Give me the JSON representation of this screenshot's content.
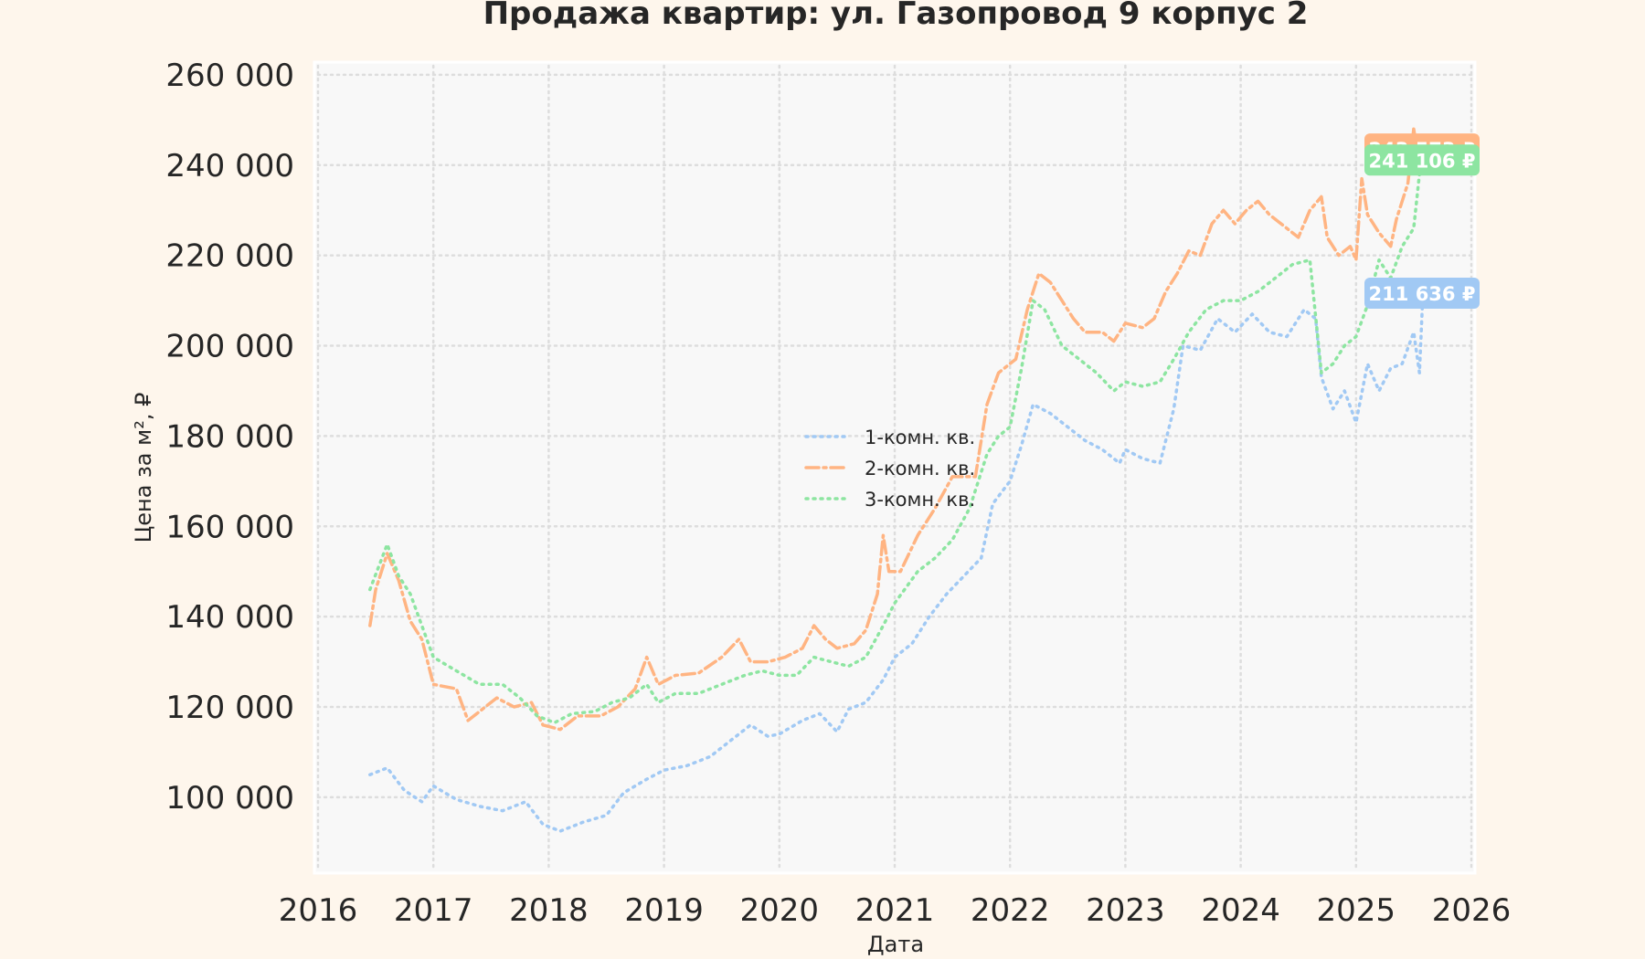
{
  "chart_data": {
    "type": "line",
    "title": "Продажа квартир: ул. Газопровод 9 корпус 2",
    "xlabel": "Дата",
    "ylabel": "Цена за м², ₽",
    "xlim": [
      2016.0,
      2026.0
    ],
    "ylim": [
      84000,
      262000
    ],
    "x_ticks": [
      "2016",
      "2017",
      "2018",
      "2019",
      "2020",
      "2021",
      "2022",
      "2023",
      "2024",
      "2025",
      "2026"
    ],
    "y_ticks": [
      {
        "value": 100000,
        "label": "100 000"
      },
      {
        "value": 120000,
        "label": "120 000"
      },
      {
        "value": 140000,
        "label": "140 000"
      },
      {
        "value": 160000,
        "label": "160 000"
      },
      {
        "value": 180000,
        "label": "180 000"
      },
      {
        "value": 200000,
        "label": "200 000"
      },
      {
        "value": 220000,
        "label": "220 000"
      },
      {
        "value": 240000,
        "label": "240 000"
      },
      {
        "value": 260000,
        "label": "260 000"
      }
    ],
    "grid": true,
    "legend_position": "center",
    "series": [
      {
        "name": "1-комн. кв.",
        "color": "#a1c9f4",
        "style": "dotted",
        "end_label": "211 636 ₽",
        "end_value": 211636,
        "points": [
          [
            2016.45,
            105000
          ],
          [
            2016.6,
            106500
          ],
          [
            2016.75,
            101500
          ],
          [
            2016.9,
            99000
          ],
          [
            2017.0,
            102500
          ],
          [
            2017.2,
            99500
          ],
          [
            2017.4,
            98000
          ],
          [
            2017.6,
            97000
          ],
          [
            2017.8,
            99000
          ],
          [
            2017.95,
            94000
          ],
          [
            2018.1,
            92500
          ],
          [
            2018.3,
            94500
          ],
          [
            2018.5,
            96000
          ],
          [
            2018.65,
            101000
          ],
          [
            2018.85,
            104000
          ],
          [
            2019.0,
            106000
          ],
          [
            2019.2,
            107000
          ],
          [
            2019.4,
            109000
          ],
          [
            2019.6,
            113000
          ],
          [
            2019.75,
            116000
          ],
          [
            2019.9,
            113500
          ],
          [
            2020.0,
            114000
          ],
          [
            2020.2,
            117000
          ],
          [
            2020.35,
            118500
          ],
          [
            2020.5,
            114500
          ],
          [
            2020.6,
            119500
          ],
          [
            2020.75,
            121000
          ],
          [
            2020.9,
            126000
          ],
          [
            2021.0,
            131000
          ],
          [
            2021.15,
            134000
          ],
          [
            2021.3,
            140000
          ],
          [
            2021.45,
            145000
          ],
          [
            2021.6,
            149000
          ],
          [
            2021.75,
            153000
          ],
          [
            2021.85,
            165000
          ],
          [
            2022.0,
            170000
          ],
          [
            2022.1,
            178000
          ],
          [
            2022.2,
            187000
          ],
          [
            2022.35,
            185000
          ],
          [
            2022.5,
            182000
          ],
          [
            2022.65,
            179000
          ],
          [
            2022.8,
            177000
          ],
          [
            2022.95,
            174000
          ],
          [
            2023.0,
            177000
          ],
          [
            2023.15,
            175000
          ],
          [
            2023.3,
            174000
          ],
          [
            2023.42,
            186000
          ],
          [
            2023.5,
            200000
          ],
          [
            2023.65,
            199000
          ],
          [
            2023.8,
            206000
          ],
          [
            2023.95,
            203000
          ],
          [
            2024.1,
            207000
          ],
          [
            2024.25,
            203000
          ],
          [
            2024.4,
            202000
          ],
          [
            2024.55,
            208000
          ],
          [
            2024.65,
            206000
          ],
          [
            2024.7,
            193000
          ],
          [
            2024.8,
            186000
          ],
          [
            2024.9,
            190000
          ],
          [
            2025.0,
            183000
          ],
          [
            2025.1,
            196000
          ],
          [
            2025.2,
            190000
          ],
          [
            2025.3,
            195000
          ],
          [
            2025.4,
            196000
          ],
          [
            2025.5,
            203000
          ],
          [
            2025.55,
            194000
          ],
          [
            2025.58,
            211636
          ]
        ]
      },
      {
        "name": "2-комн. кв.",
        "color": "#ffb482",
        "style": "dashdot",
        "end_label": "243 573 ₽",
        "end_value": 243573,
        "points": [
          [
            2016.45,
            138000
          ],
          [
            2016.5,
            146000
          ],
          [
            2016.6,
            154000
          ],
          [
            2016.7,
            148000
          ],
          [
            2016.8,
            139000
          ],
          [
            2016.9,
            135000
          ],
          [
            2017.0,
            125000
          ],
          [
            2017.2,
            124000
          ],
          [
            2017.3,
            117000
          ],
          [
            2017.4,
            119000
          ],
          [
            2017.55,
            122000
          ],
          [
            2017.7,
            120000
          ],
          [
            2017.85,
            121000
          ],
          [
            2017.95,
            116000
          ],
          [
            2018.1,
            115000
          ],
          [
            2018.25,
            118000
          ],
          [
            2018.45,
            118000
          ],
          [
            2018.6,
            120000
          ],
          [
            2018.75,
            124000
          ],
          [
            2018.85,
            131000
          ],
          [
            2018.95,
            125000
          ],
          [
            2019.1,
            127000
          ],
          [
            2019.3,
            127500
          ],
          [
            2019.5,
            131000
          ],
          [
            2019.65,
            135000
          ],
          [
            2019.75,
            130000
          ],
          [
            2019.9,
            130000
          ],
          [
            2020.05,
            131000
          ],
          [
            2020.2,
            133000
          ],
          [
            2020.3,
            138000
          ],
          [
            2020.4,
            135000
          ],
          [
            2020.5,
            133000
          ],
          [
            2020.65,
            134000
          ],
          [
            2020.75,
            137000
          ],
          [
            2020.85,
            145000
          ],
          [
            2020.9,
            158000
          ],
          [
            2020.95,
            150000
          ],
          [
            2021.05,
            150000
          ],
          [
            2021.2,
            158000
          ],
          [
            2021.35,
            164000
          ],
          [
            2021.5,
            171000
          ],
          [
            2021.7,
            171000
          ],
          [
            2021.8,
            187000
          ],
          [
            2021.9,
            194000
          ],
          [
            2022.05,
            197000
          ],
          [
            2022.15,
            208000
          ],
          [
            2022.25,
            216000
          ],
          [
            2022.35,
            214000
          ],
          [
            2022.45,
            210000
          ],
          [
            2022.55,
            206000
          ],
          [
            2022.65,
            203000
          ],
          [
            2022.8,
            203000
          ],
          [
            2022.9,
            201000
          ],
          [
            2023.0,
            205000
          ],
          [
            2023.15,
            204000
          ],
          [
            2023.25,
            206000
          ],
          [
            2023.35,
            212000
          ],
          [
            2023.45,
            216000
          ],
          [
            2023.55,
            221000
          ],
          [
            2023.65,
            220000
          ],
          [
            2023.75,
            227000
          ],
          [
            2023.85,
            230000
          ],
          [
            2023.95,
            227000
          ],
          [
            2024.05,
            230000
          ],
          [
            2024.15,
            232000
          ],
          [
            2024.25,
            229000
          ],
          [
            2024.4,
            226000
          ],
          [
            2024.5,
            224000
          ],
          [
            2024.6,
            230000
          ],
          [
            2024.7,
            233000
          ],
          [
            2024.75,
            224000
          ],
          [
            2024.85,
            220000
          ],
          [
            2024.95,
            222000
          ],
          [
            2025.0,
            219000
          ],
          [
            2025.05,
            237000
          ],
          [
            2025.1,
            229000
          ],
          [
            2025.2,
            225000
          ],
          [
            2025.3,
            222000
          ],
          [
            2025.35,
            228000
          ],
          [
            2025.45,
            236000
          ],
          [
            2025.5,
            248000
          ],
          [
            2025.55,
            240000
          ],
          [
            2025.58,
            243573
          ]
        ]
      },
      {
        "name": "3-комн. кв.",
        "color": "#8de5a1",
        "style": "dotted",
        "end_label": "241 106 ₽",
        "end_value": 241106,
        "points": [
          [
            2016.45,
            146000
          ],
          [
            2016.6,
            156000
          ],
          [
            2016.7,
            149000
          ],
          [
            2016.8,
            145000
          ],
          [
            2016.9,
            138000
          ],
          [
            2017.0,
            131000
          ],
          [
            2017.2,
            128000
          ],
          [
            2017.4,
            125000
          ],
          [
            2017.6,
            125000
          ],
          [
            2017.75,
            122000
          ],
          [
            2017.9,
            118000
          ],
          [
            2018.05,
            116500
          ],
          [
            2018.2,
            118500
          ],
          [
            2018.4,
            119000
          ],
          [
            2018.55,
            121000
          ],
          [
            2018.7,
            122000
          ],
          [
            2018.85,
            125000
          ],
          [
            2018.95,
            121000
          ],
          [
            2019.1,
            123000
          ],
          [
            2019.3,
            123000
          ],
          [
            2019.5,
            125000
          ],
          [
            2019.7,
            127000
          ],
          [
            2019.85,
            128000
          ],
          [
            2020.0,
            127000
          ],
          [
            2020.15,
            127000
          ],
          [
            2020.3,
            131000
          ],
          [
            2020.45,
            130000
          ],
          [
            2020.6,
            129000
          ],
          [
            2020.75,
            131000
          ],
          [
            2020.9,
            138000
          ],
          [
            2021.0,
            143000
          ],
          [
            2021.2,
            150000
          ],
          [
            2021.35,
            153000
          ],
          [
            2021.5,
            157000
          ],
          [
            2021.65,
            164000
          ],
          [
            2021.8,
            176000
          ],
          [
            2021.9,
            180000
          ],
          [
            2022.0,
            182000
          ],
          [
            2022.1,
            195000
          ],
          [
            2022.2,
            210000
          ],
          [
            2022.3,
            208000
          ],
          [
            2022.45,
            200000
          ],
          [
            2022.6,
            197000
          ],
          [
            2022.75,
            194000
          ],
          [
            2022.9,
            190000
          ],
          [
            2023.0,
            192000
          ],
          [
            2023.15,
            191000
          ],
          [
            2023.3,
            192000
          ],
          [
            2023.42,
            197000
          ],
          [
            2023.55,
            203000
          ],
          [
            2023.7,
            208000
          ],
          [
            2023.85,
            210000
          ],
          [
            2024.0,
            210000
          ],
          [
            2024.15,
            212000
          ],
          [
            2024.3,
            215000
          ],
          [
            2024.45,
            218000
          ],
          [
            2024.6,
            219000
          ],
          [
            2024.7,
            194000
          ],
          [
            2024.8,
            196000
          ],
          [
            2024.9,
            200000
          ],
          [
            2025.0,
            202000
          ],
          [
            2025.1,
            209000
          ],
          [
            2025.2,
            219000
          ],
          [
            2025.3,
            215000
          ],
          [
            2025.4,
            222000
          ],
          [
            2025.5,
            226000
          ],
          [
            2025.55,
            238000
          ],
          [
            2025.58,
            241106
          ]
        ]
      }
    ]
  }
}
